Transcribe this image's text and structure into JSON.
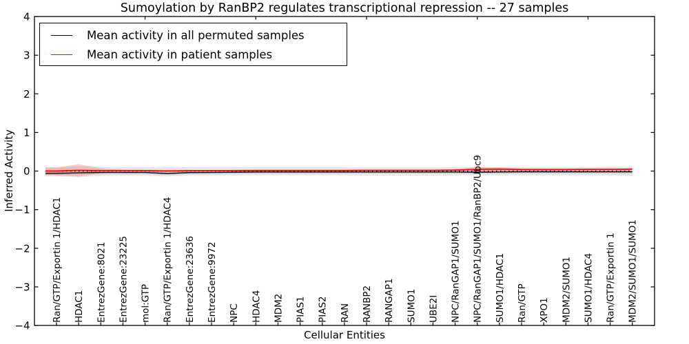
{
  "figure": {
    "background": "#ffffff"
  },
  "chart_data": {
    "type": "line",
    "title": "Sumoylation by RanBP2 regulates transcriptional repression -- 27 samples",
    "xlabel": "Cellular Entities",
    "ylabel": "Inferred Activity",
    "ylim": [
      -4,
      4
    ],
    "grid": false,
    "y_tick_labels": [
      "4",
      "3",
      "2",
      "1",
      "0",
      "−1",
      "−2",
      "−3",
      "−4"
    ],
    "y_tick_values": [
      4,
      3,
      2,
      1,
      0,
      -1,
      -2,
      -3,
      -4
    ],
    "x_top_tick_indices": [
      4,
      9,
      14,
      19,
      24
    ],
    "legend": {
      "position": "upper left",
      "entries": [
        {
          "label": "Mean activity in all permuted samples",
          "color": "#000000"
        },
        {
          "label": "Mean activity in patient samples",
          "color": "#ff0000"
        }
      ]
    },
    "categories": [
      "Ran/GTP/Exportin 1/HDAC1",
      "HDAC1",
      "EntrezGene:8021",
      "EntrezGene:23225",
      "mol:GTP",
      "Ran/GTP/Exportin 1/HDAC4",
      "EntrezGene:23636",
      "EntrezGene:9972",
      "NPC",
      "HDAC4",
      "MDM2",
      "PIAS1",
      "PIAS2",
      "RAN",
      "RANBP2",
      "RANGAP1",
      "SUMO1",
      "UBE2I",
      "NPC/RanGAP1/SUMO1",
      "NPC/RanGAP1/SUMO1/RanBP2/Ubc9",
      "SUMO1/HDAC1",
      "Ran/GTP",
      "XPO1",
      "MDM2/SUMO1",
      "SUMO1/HDAC4",
      "Ran/GTP/Exportin 1",
      "MDM2/SUMO1/SUMO1"
    ],
    "series": [
      {
        "name": "Mean activity in all permuted samples",
        "color": "#000000",
        "values": [
          -0.06,
          -0.045,
          -0.035,
          -0.035,
          -0.035,
          -0.065,
          -0.04,
          -0.035,
          -0.03,
          -0.025,
          -0.025,
          -0.025,
          -0.025,
          -0.025,
          -0.025,
          -0.025,
          -0.025,
          -0.025,
          -0.025,
          -0.03,
          -0.025,
          -0.02,
          -0.02,
          -0.02,
          -0.02,
          -0.02,
          -0.02
        ]
      },
      {
        "name": "Mean activity in patient samples",
        "color": "#ff0000",
        "values": [
          0.0,
          0.02,
          0.01,
          0.01,
          0.01,
          0.0,
          0.01,
          0.01,
          0.01,
          0.015,
          0.015,
          0.015,
          0.015,
          0.015,
          0.02,
          0.02,
          0.02,
          0.02,
          0.025,
          0.045,
          0.05,
          0.04,
          0.04,
          0.04,
          0.045,
          0.045,
          0.05
        ]
      }
    ],
    "bands": {
      "permuted_outer": {
        "color": "#787878",
        "opacity": 0.18,
        "upper": [
          0.1,
          0.13,
          0.11,
          0.1,
          0.1,
          0.11,
          0.1,
          0.1,
          0.1,
          0.1,
          0.1,
          0.1,
          0.1,
          0.1,
          0.1,
          0.1,
          0.1,
          0.1,
          0.1,
          0.1,
          0.1,
          0.1,
          0.1,
          0.1,
          0.1,
          0.11,
          0.12
        ],
        "lower": [
          -0.14,
          -0.16,
          -0.13,
          -0.12,
          -0.12,
          -0.14,
          -0.12,
          -0.12,
          -0.11,
          -0.11,
          -0.11,
          -0.11,
          -0.11,
          -0.11,
          -0.11,
          -0.11,
          -0.11,
          -0.11,
          -0.11,
          -0.11,
          -0.11,
          -0.11,
          -0.11,
          -0.11,
          -0.11,
          -0.12,
          -0.13
        ]
      },
      "permuted_inner": {
        "color": "#555555",
        "opacity": 0.22,
        "half_width": 0.035
      },
      "patient_outer": {
        "color": "#ff0000",
        "opacity": 0.18,
        "upper": [
          0.09,
          0.18,
          0.07,
          0.035,
          0.03,
          0.03,
          0.03,
          0.03,
          0.03,
          0.03,
          0.03,
          0.03,
          0.03,
          0.03,
          0.035,
          0.035,
          0.035,
          0.035,
          0.05,
          0.1,
          0.1,
          0.06,
          0.05,
          0.05,
          0.055,
          0.055,
          0.065
        ],
        "lower": [
          -0.11,
          -0.14,
          -0.06,
          -0.02,
          -0.015,
          -0.02,
          -0.015,
          -0.01,
          -0.01,
          -0.01,
          -0.01,
          -0.01,
          -0.01,
          -0.01,
          -0.01,
          -0.01,
          -0.01,
          -0.01,
          -0.01,
          -0.015,
          -0.015,
          -0.01,
          -0.005,
          -0.005,
          -0.005,
          -0.005,
          0.0
        ]
      },
      "patient_inner": {
        "color": "#ff0000",
        "opacity": 0.3,
        "half_width": 0.018
      }
    },
    "zero_line": {
      "value": 0,
      "style": "dotted",
      "color": "#000000"
    }
  }
}
